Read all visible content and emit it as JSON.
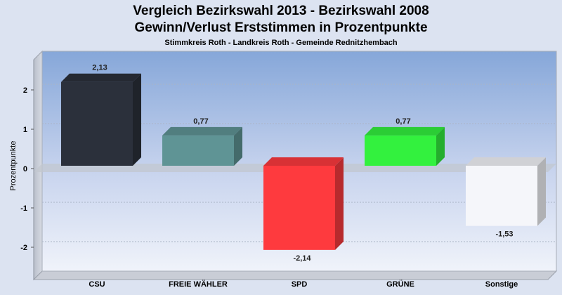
{
  "title_line1": "Vergleich Bezirkswahl 2013 - Bezirkswahl 2008",
  "title_line2": "Gewinn/Verlust Erststimmen in Prozentpunkte",
  "subtitle": "Stimmkreis Roth - Landkreis Roth - Gemeinde Rednitzhembach",
  "chart_data": {
    "type": "bar",
    "title": "Vergleich Bezirkswahl 2013 - Bezirkswahl 2008",
    "subtitle": "Gewinn/Verlust Erststimmen in Prozentpunkte",
    "ylabel": "Prozentpunkte",
    "xlabel": "",
    "categories": [
      "CSU",
      "FREIE WÄHLER",
      "SPD",
      "GRÜNE",
      "Sonstige"
    ],
    "values": [
      2.13,
      0.77,
      -2.14,
      0.77,
      -1.53
    ],
    "value_labels": [
      "2,13",
      "0,77",
      "-2,14",
      "0,77",
      "-1,53"
    ],
    "colors": [
      "#2b303b",
      "#5f9495",
      "#fe3a3e",
      "#33f13e",
      "#f5f6fa"
    ],
    "yticks": [
      2,
      1,
      0,
      -1,
      -2
    ],
    "ytick_labels": [
      "2",
      "1",
      "0",
      "-1",
      "-2"
    ],
    "ylim": [
      -2.7,
      2.9
    ],
    "grid": true,
    "legend": "none"
  }
}
